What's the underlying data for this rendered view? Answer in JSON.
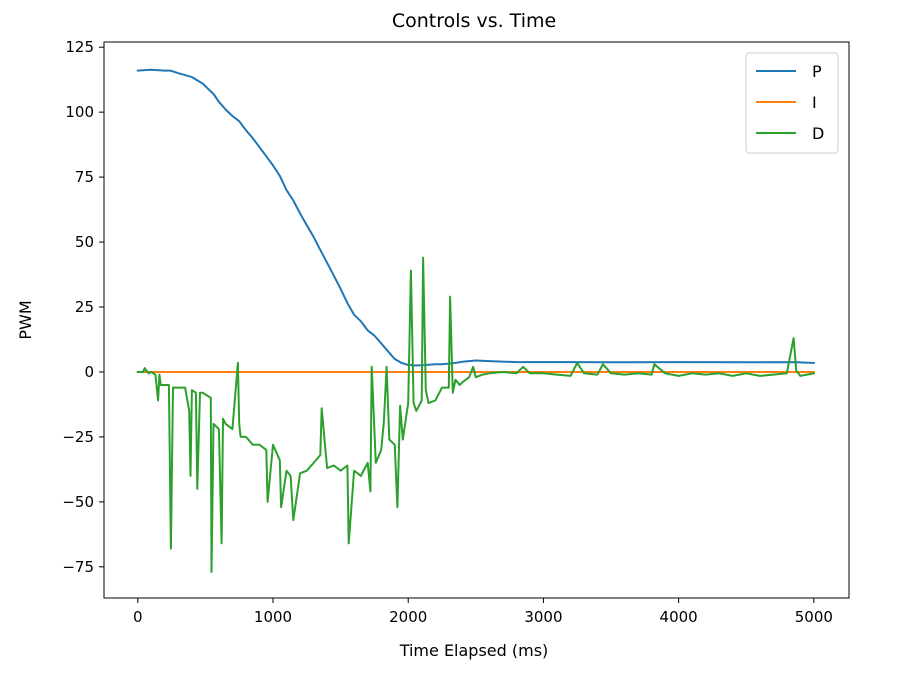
{
  "chart_data": {
    "type": "line",
    "title": "Controls vs. Time",
    "xlabel": "Time Elapsed (ms)",
    "ylabel": "PWM",
    "xlim": [
      -250,
      5260
    ],
    "ylim": [
      -87,
      127
    ],
    "xticks": [
      0,
      1000,
      2000,
      3000,
      4000,
      5000
    ],
    "yticks": [
      -75,
      -50,
      -25,
      0,
      25,
      50,
      75,
      100,
      125
    ],
    "xtick_labels": [
      "0",
      "1000",
      "2000",
      "3000",
      "4000",
      "5000"
    ],
    "ytick_labels": [
      "−75",
      "−50",
      "−25",
      "0",
      "25",
      "50",
      "75",
      "100",
      "125"
    ],
    "grid": false,
    "legend_position": "upper right",
    "series": [
      {
        "name": "P",
        "color": "#1f77b4",
        "x": [
          0,
          100,
          200,
          240,
          300,
          400,
          480,
          520,
          560,
          600,
          650,
          700,
          750,
          800,
          850,
          900,
          950,
          1000,
          1050,
          1100,
          1150,
          1200,
          1250,
          1300,
          1350,
          1400,
          1450,
          1500,
          1550,
          1600,
          1650,
          1700,
          1750,
          1800,
          1850,
          1900,
          1950,
          2000,
          2050,
          2100,
          2150,
          2200,
          2250,
          2300,
          2350,
          2400,
          2500,
          2600,
          2800,
          3000,
          3200,
          3500,
          4000,
          4500,
          4850,
          5000
        ],
        "y": [
          116,
          116.3,
          116,
          116,
          115,
          113.5,
          111,
          109,
          107,
          104,
          101,
          98.5,
          96.5,
          93,
          90,
          86.5,
          83,
          79.5,
          75.5,
          70,
          66,
          61,
          56.5,
          52,
          47,
          42,
          37,
          32,
          26.5,
          22,
          19.5,
          16,
          14,
          11,
          8,
          5,
          3.5,
          2.7,
          2.5,
          2.6,
          2.8,
          3,
          3,
          3.2,
          3.5,
          3.9,
          4.4,
          4.2,
          3.8,
          3.8,
          3.8,
          3.7,
          3.8,
          3.7,
          3.8,
          3.5
        ]
      },
      {
        "name": "I",
        "color": "#ff7f0e",
        "x": [
          0,
          5000
        ],
        "y": [
          0,
          0
        ]
      },
      {
        "name": "D",
        "color": "#2ca02c",
        "x": [
          0,
          40,
          50,
          80,
          100,
          130,
          150,
          160,
          170,
          200,
          230,
          245,
          260,
          300,
          350,
          380,
          390,
          400,
          430,
          440,
          460,
          480,
          540,
          545,
          560,
          600,
          620,
          630,
          650,
          700,
          740,
          750,
          760,
          800,
          850,
          900,
          950,
          960,
          1000,
          1050,
          1060,
          1100,
          1130,
          1150,
          1200,
          1250,
          1300,
          1350,
          1360,
          1400,
          1450,
          1500,
          1550,
          1560,
          1600,
          1650,
          1700,
          1720,
          1730,
          1760,
          1800,
          1820,
          1840,
          1860,
          1900,
          1920,
          1940,
          1960,
          2000,
          2020,
          2040,
          2060,
          2100,
          2110,
          2130,
          2150,
          2200,
          2250,
          2300,
          2310,
          2330,
          2350,
          2380,
          2400,
          2450,
          2480,
          2500,
          2550,
          2600,
          2700,
          2800,
          2850,
          2900,
          3000,
          3100,
          3200,
          3250,
          3300,
          3400,
          3440,
          3500,
          3600,
          3700,
          3800,
          3820,
          3900,
          4000,
          4100,
          4200,
          4300,
          4400,
          4500,
          4600,
          4700,
          4800,
          4850,
          4870,
          4900,
          5000
        ],
        "y": [
          0,
          0,
          1.5,
          -0.5,
          0,
          -1,
          -11,
          -1,
          -5,
          -5,
          -5,
          -68,
          -6,
          -6,
          -6,
          -15,
          -40,
          -7,
          -8,
          -45,
          -8,
          -8,
          -10,
          -77,
          -20,
          -22,
          -66,
          -18,
          -20,
          -22,
          3.5,
          -20,
          -25,
          -25,
          -28,
          -28,
          -30,
          -50,
          -28,
          -34,
          -52,
          -38,
          -40,
          -57,
          -39,
          -38,
          -35,
          -32,
          -14,
          -37,
          -36,
          -38,
          -36,
          -66,
          -38,
          -40,
          -35,
          -46,
          2,
          -35,
          -30,
          -19,
          2,
          -26,
          -28,
          -52,
          -13,
          -26,
          -12,
          39,
          -12,
          -15,
          -11,
          44,
          -7,
          -12,
          -11,
          -6,
          -6,
          29,
          -8,
          -3,
          -5,
          -4,
          -2,
          2,
          -2,
          -1,
          -0.5,
          0,
          -0.5,
          2,
          -0.5,
          -0.5,
          -1,
          -1.5,
          3.5,
          -0.5,
          -1,
          3,
          -0.5,
          -1,
          -0.5,
          -1,
          3,
          -0.5,
          -1.5,
          -0.5,
          -1,
          -0.5,
          -1.5,
          -0.5,
          -1.5,
          -1,
          -0.5,
          13,
          0.5,
          -1.5,
          -0.5
        ]
      }
    ]
  }
}
